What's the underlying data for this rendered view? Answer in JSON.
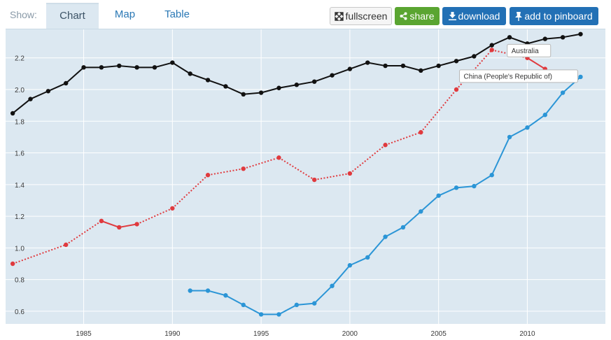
{
  "toolbar": {
    "show_label": "Show:",
    "tabs": [
      {
        "label": "Chart",
        "active": true
      },
      {
        "label": "Map",
        "active": false
      },
      {
        "label": "Table",
        "active": false
      }
    ],
    "buttons": {
      "fullscreen": "fullscreen",
      "share": "share",
      "download": "download",
      "pinboard": "add to pinboard"
    },
    "icons": {
      "fullscreen": "expand-arrows-icon",
      "share": "share-icon",
      "download": "download-arrow-icon",
      "pinboard": "pin-icon"
    }
  },
  "chart_data": {
    "type": "line",
    "xlim": [
      1980.6,
      2014.4
    ],
    "ylim": [
      0.52,
      2.38
    ],
    "xticks": [
      1985,
      1990,
      1995,
      2000,
      2005,
      2010
    ],
    "yticks": [
      0.6,
      0.8,
      1.0,
      1.2,
      1.4,
      1.6,
      1.8,
      2.0,
      2.2
    ],
    "grid": true,
    "colors": {
      "plot_bg": "#dce8f1",
      "grid": "#ffffff"
    },
    "series": [
      {
        "color": "#111111",
        "style": "solid",
        "x": [
          1981,
          1982,
          1983,
          1984,
          1985,
          1986,
          1987,
          1988,
          1989,
          1990,
          1991,
          1992,
          1993,
          1994,
          1995,
          1996,
          1997,
          1998,
          1999,
          2000,
          2001,
          2002,
          2003,
          2004,
          2005,
          2006,
          2007,
          2008,
          2009,
          2010,
          2011,
          2012,
          2013
        ],
        "y": [
          1.85,
          1.94,
          1.99,
          2.04,
          2.14,
          2.14,
          2.15,
          2.14,
          2.14,
          2.17,
          2.1,
          2.06,
          2.02,
          1.97,
          1.98,
          2.01,
          2.03,
          2.05,
          2.09,
          2.13,
          2.17,
          2.15,
          2.15,
          2.12,
          2.15,
          2.18,
          2.21,
          2.28,
          2.33,
          2.29,
          2.32,
          2.33,
          2.35
        ]
      },
      {
        "name": "Australia",
        "color": "#e03a3e",
        "x": [
          1981,
          1984,
          1986,
          1987,
          1988,
          1990,
          1992,
          1994,
          1996,
          1998,
          2000,
          2002,
          2004,
          2006,
          2008,
          2010,
          2011
        ],
        "y": [
          0.9,
          1.02,
          1.17,
          1.13,
          1.15,
          1.25,
          1.46,
          1.5,
          1.57,
          1.43,
          1.47,
          1.65,
          1.73,
          2.0,
          2.25,
          2.2,
          2.13
        ],
        "segments": [
          "dotted",
          "dotted",
          "solid",
          "solid",
          "dotted",
          "dotted",
          "dotted",
          "dotted",
          "dotted",
          "dotted",
          "dotted",
          "dotted",
          "dotted",
          "dotted",
          "dotted",
          "solid"
        ]
      },
      {
        "name": "China (People's Republic of)",
        "color": "#2b95d6",
        "style": "solid",
        "x": [
          1991,
          1992,
          1993,
          1994,
          1995,
          1996,
          1997,
          1998,
          1999,
          2000,
          2001,
          2002,
          2003,
          2004,
          2005,
          2006,
          2007,
          2008,
          2009,
          2010,
          2011,
          2012,
          2013
        ],
        "y": [
          0.73,
          0.73,
          0.7,
          0.64,
          0.58,
          0.58,
          0.64,
          0.65,
          0.76,
          0.89,
          0.94,
          1.07,
          1.13,
          1.23,
          1.33,
          1.38,
          1.39,
          1.46,
          1.7,
          1.76,
          1.84,
          1.98,
          2.08
        ]
      }
    ],
    "tooltips": [
      {
        "text": "Australia",
        "series": 1,
        "point_index": 14
      },
      {
        "text": "China (People's Republic of)",
        "series": 2,
        "point_index": 22
      }
    ]
  }
}
